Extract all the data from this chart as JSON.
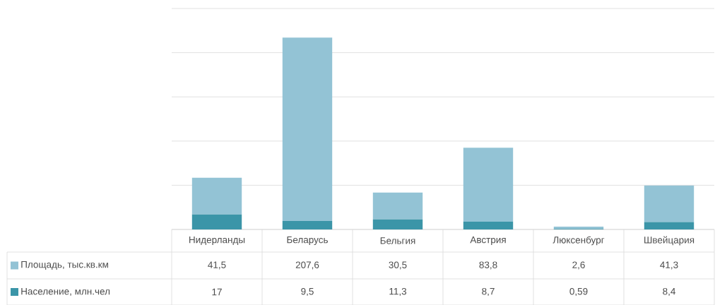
{
  "chart_data": {
    "type": "bar",
    "stacked": true,
    "categories": [
      "Нидерланды",
      "Беларусь",
      "Бельгия",
      "Австрия",
      "Люксенбург",
      "Швейцария"
    ],
    "series": [
      {
        "name": "Население, млн.чел",
        "color": "#3b95a8",
        "values": [
          17,
          9.5,
          11.3,
          8.7,
          0.59,
          8.4
        ],
        "value_labels": [
          "17",
          "9,5",
          "11,3",
          "8,7",
          "0,59",
          "8,4"
        ]
      },
      {
        "name": "Площадь, тыс.кв.км",
        "color": "#93c3d5",
        "values": [
          41.5,
          207.6,
          30.5,
          83.8,
          2.6,
          41.3
        ],
        "value_labels": [
          "41,5",
          "207,6",
          "30,5",
          "83,8",
          "2,6",
          "41,3"
        ]
      }
    ],
    "ylim": [
      0,
      250
    ],
    "yticks": [
      {
        "value": 0,
        "label": null
      },
      {
        "value": 50,
        "label": null
      },
      {
        "value": 100,
        "label": null
      },
      {
        "value": 150,
        "label": null
      },
      {
        "value": 200,
        "label": null
      },
      {
        "value": 250,
        "label": null
      }
    ],
    "grid": "y",
    "legend": "left"
  }
}
